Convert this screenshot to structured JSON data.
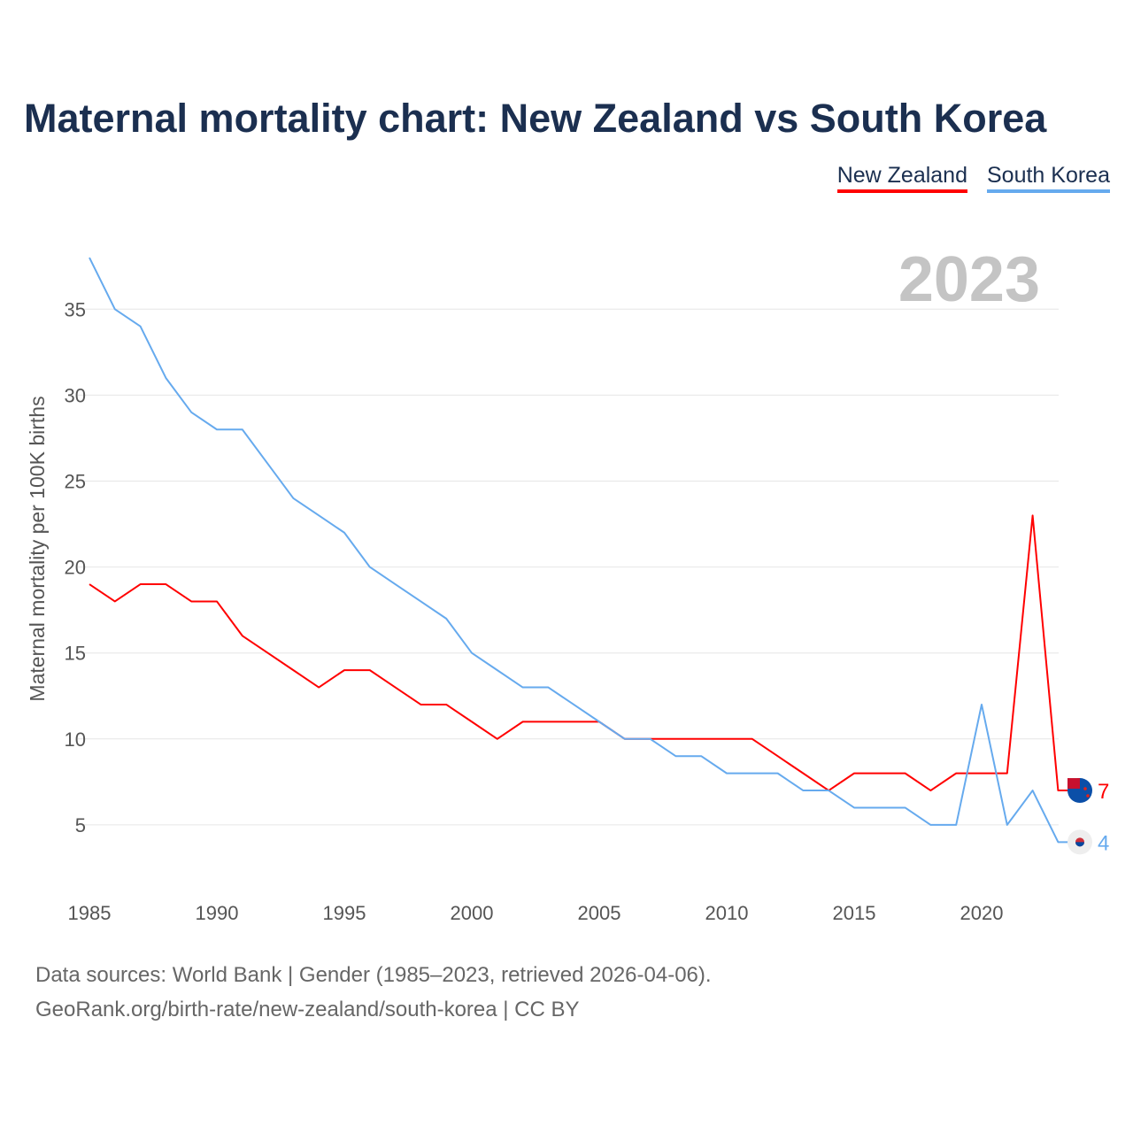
{
  "chart_data": {
    "type": "line",
    "title": "Maternal mortality chart: New Zealand vs South Korea",
    "xlabel": "",
    "ylabel": "Maternal mortality per 100K births",
    "current_year_label": "2023",
    "x": [
      1985,
      1986,
      1987,
      1988,
      1989,
      1990,
      1991,
      1992,
      1993,
      1994,
      1995,
      1996,
      1997,
      1998,
      1999,
      2000,
      2001,
      2002,
      2003,
      2004,
      2005,
      2006,
      2007,
      2008,
      2009,
      2010,
      2011,
      2012,
      2013,
      2014,
      2015,
      2016,
      2017,
      2018,
      2019,
      2020,
      2021,
      2022,
      2023
    ],
    "xticks": [
      "1985",
      "1990",
      "1995",
      "2000",
      "2005",
      "2010",
      "2015",
      "2020"
    ],
    "yticks": [
      "5",
      "10",
      "15",
      "20",
      "25",
      "30",
      "35"
    ],
    "ylim": [
      0,
      38
    ],
    "grid": true,
    "legend_placement": "top-right",
    "series": [
      {
        "name": "New Zealand",
        "color": "#ff0000",
        "end_label": "7",
        "flag": "new-zealand-flag",
        "values": [
          19,
          18,
          19,
          19,
          18,
          18,
          16,
          15,
          14,
          13,
          14,
          14,
          13,
          12,
          12,
          11,
          10,
          11,
          11,
          11,
          11,
          10,
          10,
          10,
          10,
          10,
          10,
          9,
          8,
          7,
          8,
          8,
          8,
          7,
          8,
          8,
          8,
          23,
          7
        ]
      },
      {
        "name": "South Korea",
        "color": "#66aaee",
        "end_label": "4",
        "flag": "south-korea-flag",
        "values": [
          38,
          35,
          34,
          31,
          29,
          28,
          28,
          26,
          24,
          23,
          22,
          20,
          19,
          18,
          17,
          15,
          14,
          13,
          13,
          12,
          11,
          10,
          10,
          9,
          9,
          8,
          8,
          8,
          7,
          7,
          6,
          6,
          6,
          5,
          5,
          12,
          5,
          7,
          4
        ]
      }
    ]
  },
  "footer": {
    "line1": "Data sources: World Bank | Gender (1985–2023, retrieved 2026-04-06).",
    "line2": "GeoRank.org/birth-rate/new-zealand/south-korea | CC BY"
  }
}
